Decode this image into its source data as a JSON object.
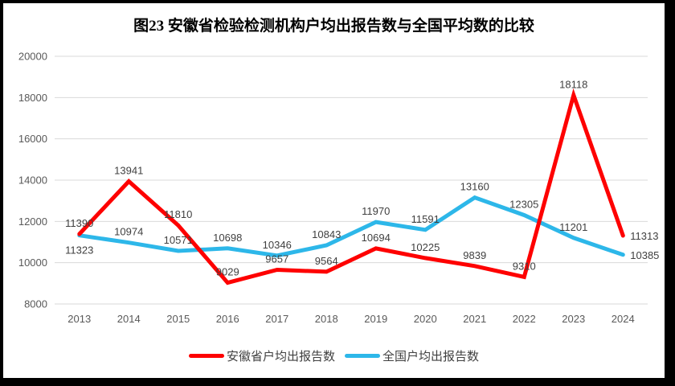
{
  "title": "图23 安徽省检验检测机构户均出报告数与全国平均数的比较",
  "chart_data": {
    "type": "line",
    "categories": [
      "2013",
      "2014",
      "2015",
      "2016",
      "2017",
      "2018",
      "2019",
      "2020",
      "2021",
      "2022",
      "2023",
      "2024"
    ],
    "series": [
      {
        "name": "安徽省户均出报告数",
        "color": "#FE0000",
        "values": [
          11390,
          13941,
          11810,
          9029,
          9657,
          9564,
          10694,
          10225,
          9839,
          9310,
          18118,
          11313
        ],
        "label_positions": [
          "above",
          "above",
          "above",
          "above",
          "above",
          "above",
          "above",
          "above",
          "above",
          "above",
          "above",
          "right"
        ]
      },
      {
        "name": "全国户均出报告数",
        "color": "#2DB7E9",
        "values": [
          11323,
          10974,
          10571,
          10698,
          10346,
          10843,
          11970,
          11591,
          13160,
          12305,
          11201,
          10385
        ],
        "label_positions": [
          "below",
          "above",
          "above",
          "above",
          "above",
          "above",
          "above",
          "above",
          "above",
          "above",
          "above",
          "right"
        ]
      }
    ],
    "xlabel": "",
    "ylabel": "",
    "ylim": [
      8000,
      20000
    ],
    "yticks": [
      8000,
      10000,
      12000,
      14000,
      16000,
      18000,
      20000
    ],
    "grid": "horizontal-only",
    "legend_position": "bottom-center"
  },
  "colors": {
    "background": "#FFFFFF",
    "frame": "#000000",
    "gridline": "#D9D9D9",
    "axis_label": "#595959",
    "data_label": "#404040",
    "title": "#000000"
  }
}
